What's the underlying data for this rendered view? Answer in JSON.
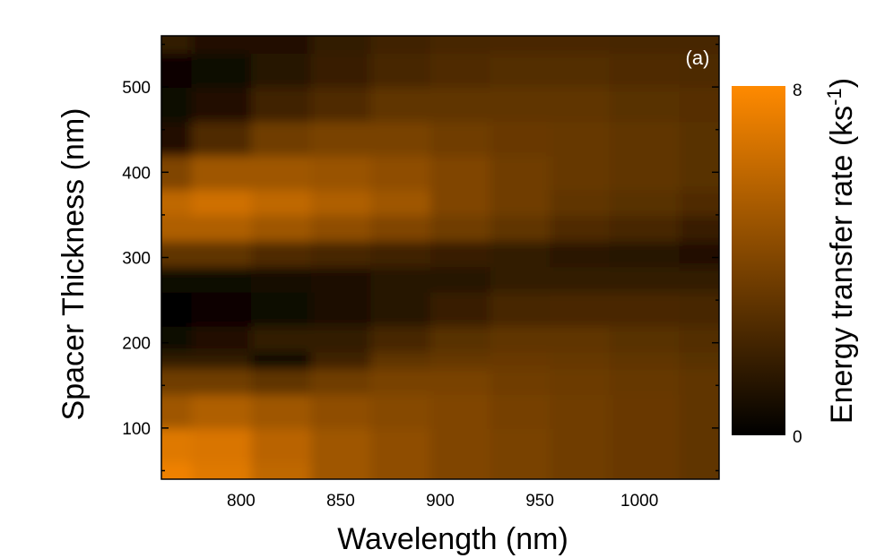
{
  "chart_data": {
    "type": "heatmap",
    "panel_label": "(a)",
    "xlabel": "Wavelength (nm)",
    "ylabel": "Spacer Thickness (nm)",
    "xlim": [
      760,
      1040
    ],
    "ylim": [
      40,
      560
    ],
    "xticks": [
      800,
      850,
      900,
      950,
      1000
    ],
    "yticks": [
      100,
      200,
      300,
      400,
      500
    ],
    "colorbar": {
      "title_main": "Energy transfer rate (ks",
      "title_sup": "-1",
      "title_end": ")",
      "min": 0,
      "max": 8,
      "tick_labels": [
        "8",
        "0"
      ],
      "colors": [
        "#000000",
        "#ff8a00"
      ]
    },
    "x": [
      760,
      790,
      820,
      850,
      880,
      910,
      940,
      970,
      1000,
      1040
    ],
    "y": [
      40,
      80,
      120,
      160,
      180,
      200,
      240,
      280,
      300,
      340,
      360,
      400,
      440,
      480,
      520,
      560
    ],
    "z": [
      [
        7.5,
        7.0,
        6.0,
        5.0,
        4.5,
        4.0,
        3.8,
        3.5,
        3.3,
        3.0
      ],
      [
        7.0,
        6.8,
        5.8,
        5.0,
        4.5,
        4.0,
        3.8,
        3.5,
        3.3,
        3.0
      ],
      [
        5.0,
        5.5,
        5.0,
        4.5,
        4.2,
        4.0,
        3.7,
        3.5,
        3.3,
        3.0
      ],
      [
        3.5,
        3.5,
        3.0,
        3.5,
        3.8,
        3.8,
        3.5,
        3.4,
        3.2,
        3.0
      ],
      [
        1.5,
        1.5,
        0.5,
        2.0,
        3.0,
        3.2,
        3.3,
        3.2,
        3.0,
        2.8
      ],
      [
        0.5,
        1.0,
        1.5,
        1.5,
        2.2,
        2.8,
        3.0,
        3.0,
        2.8,
        2.6
      ],
      [
        0.2,
        0.3,
        0.5,
        0.8,
        1.2,
        1.8,
        2.2,
        2.3,
        2.3,
        2.2
      ],
      [
        0.5,
        0.5,
        0.7,
        0.8,
        1.2,
        1.2,
        1.5,
        1.5,
        1.5,
        1.5
      ],
      [
        3.0,
        3.0,
        2.5,
        2.2,
        2.0,
        1.8,
        1.5,
        1.3,
        1.2,
        1.0
      ],
      [
        5.5,
        5.5,
        5.0,
        4.5,
        4.0,
        3.5,
        3.0,
        2.5,
        2.2,
        1.8
      ],
      [
        6.0,
        6.5,
        6.0,
        5.5,
        5.0,
        4.0,
        3.5,
        3.0,
        2.8,
        2.5
      ],
      [
        4.0,
        5.0,
        5.0,
        4.8,
        4.5,
        4.0,
        3.5,
        3.2,
        3.0,
        2.8
      ],
      [
        1.0,
        2.5,
        3.5,
        3.8,
        3.8,
        3.5,
        3.3,
        3.2,
        3.0,
        2.8
      ],
      [
        0.5,
        1.0,
        2.0,
        2.5,
        3.0,
        3.0,
        3.0,
        3.0,
        2.8,
        2.7
      ],
      [
        0.3,
        0.5,
        1.2,
        1.8,
        2.2,
        2.5,
        2.6,
        2.6,
        2.5,
        2.4
      ],
      [
        1.5,
        1.0,
        1.0,
        1.5,
        2.0,
        2.2,
        2.3,
        2.3,
        2.2,
        2.2
      ]
    ]
  }
}
